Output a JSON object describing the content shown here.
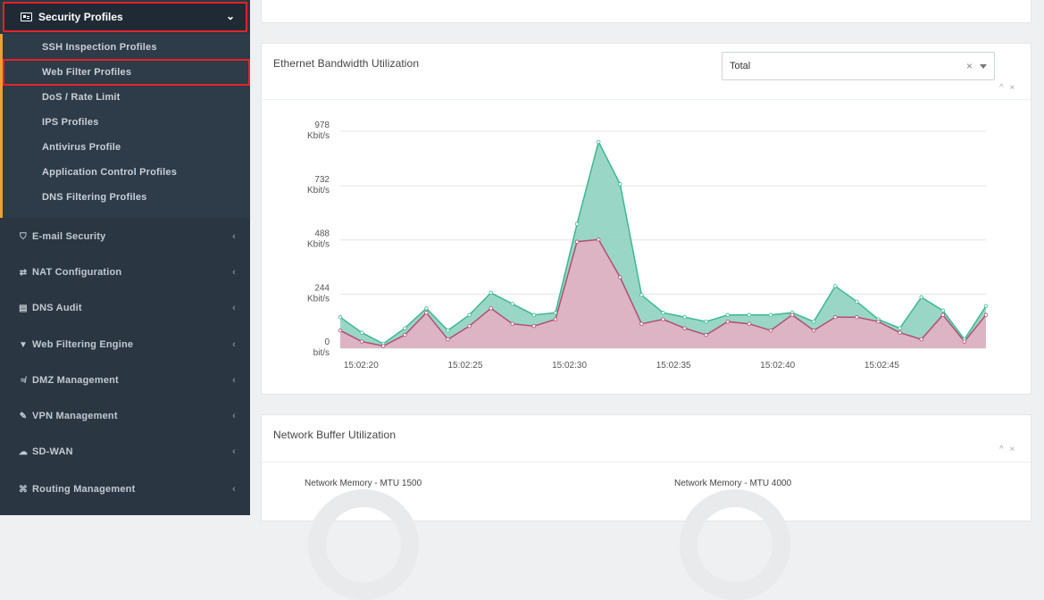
{
  "sidebar": {
    "active_section": "Security Profiles",
    "subitems": [
      "SSH Inspection Profiles",
      "Web Filter Profiles",
      "DoS / Rate Limit",
      "IPS Profiles",
      "Antivirus Profile",
      "Application Control Profiles",
      "DNS Filtering Profiles"
    ],
    "items": [
      {
        "label": "E-mail Security",
        "icon": "shield-icon"
      },
      {
        "label": "NAT Configuration",
        "icon": "swap-icon"
      },
      {
        "label": "DNS Audit",
        "icon": "book-icon"
      },
      {
        "label": "Web Filtering Engine",
        "icon": "filter-icon"
      },
      {
        "label": "DMZ Management",
        "icon": "wave-icon"
      },
      {
        "label": "VPN Management",
        "icon": "pencil-icon"
      },
      {
        "label": "SD-WAN",
        "icon": "cloud-icon"
      },
      {
        "label": "Routing Management",
        "icon": "route-icon"
      }
    ]
  },
  "bandwidth": {
    "title": "Ethernet Bandwidth Utilization",
    "select_value": "Total",
    "clear_symbol": "×",
    "controls": "^ ×"
  },
  "buffer": {
    "title": "Network Buffer Utilization",
    "controls": "^ ×",
    "gauge1_label": "Network Memory - MTU 1500",
    "gauge2_label": "Network Memory - MTU 4000"
  },
  "chart_data": {
    "type": "area",
    "y_ticks": [
      {
        "value": 978,
        "label": "978",
        "unit": "Kbit/s"
      },
      {
        "value": 732,
        "label": "732",
        "unit": "Kbit/s"
      },
      {
        "value": 488,
        "label": "488",
        "unit": "Kbit/s"
      },
      {
        "value": 244,
        "label": "244",
        "unit": "Kbit/s"
      },
      {
        "value": 0,
        "label": "0",
        "unit": "bit/s"
      }
    ],
    "ylim": [
      0,
      978
    ],
    "x_tick_labels": [
      "15:02:20",
      "15:02:25",
      "15:02:30",
      "15:02:35",
      "15:02:40",
      "15:02:45"
    ],
    "x_start": 19,
    "x_end": 50,
    "grid": true,
    "colors": {
      "total": "#8fd1c0",
      "total_line": "#3bb891",
      "lower": "#dcb4c4",
      "lower_line": "#b24e72"
    },
    "series": [
      {
        "values": [
          140,
          70,
          20,
          90,
          180,
          80,
          150,
          250,
          200,
          150,
          160,
          560,
          930,
          740,
          240,
          160,
          140,
          120,
          150,
          150,
          150,
          160,
          120,
          280,
          210,
          130,
          90,
          230,
          170,
          40,
          190
        ]
      },
      {
        "values": [
          80,
          30,
          10,
          60,
          160,
          40,
          100,
          180,
          110,
          100,
          130,
          480,
          490,
          320,
          110,
          130,
          90,
          60,
          120,
          110,
          80,
          150,
          80,
          140,
          140,
          120,
          70,
          40,
          150,
          30,
          150
        ]
      }
    ]
  }
}
